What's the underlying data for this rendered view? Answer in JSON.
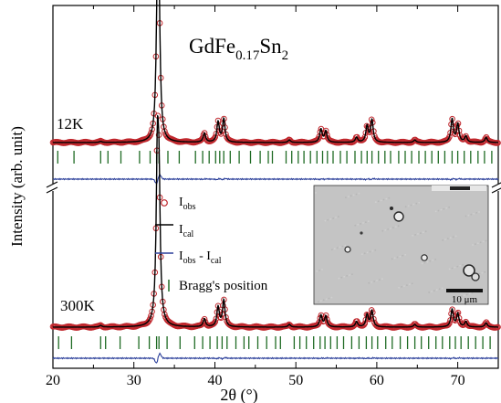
{
  "chart_data": {
    "type": "line",
    "formula": {
      "base": "GdFe",
      "sub1": "0.17",
      "mid": "Sn",
      "sub2": "2"
    },
    "xlabel": {
      "main": "2θ",
      "unit": "(°)"
    },
    "ylabel": "Intensity (arb. unit)",
    "xlim": [
      20,
      75
    ],
    "x_ticks": [
      20,
      30,
      40,
      50,
      60,
      70
    ],
    "colors": {
      "obs": "#c0272d",
      "cal": "#000000",
      "diff": "#2b3f9a",
      "bragg": "#1f6b24"
    },
    "legend": {
      "placement": "center",
      "obs": {
        "main": "I",
        "sub": "obs"
      },
      "cal": {
        "main": "I",
        "sub": "cal"
      },
      "diff": {
        "main1": "I",
        "sub1": "obs",
        "sep": " - ",
        "main2": "I",
        "sub2": "cal"
      },
      "bragg": "Bragg's position"
    },
    "panels": [
      {
        "label": "12K",
        "background": 0.1,
        "peaks": [
          [
            25.9,
            0.02
          ],
          [
            32.9,
            2.6
          ],
          [
            33.1,
            2.2
          ],
          [
            38.7,
            0.18
          ],
          [
            40.4,
            0.4
          ],
          [
            41.1,
            0.46
          ],
          [
            49.2,
            0.05
          ],
          [
            53.1,
            0.26
          ],
          [
            53.7,
            0.22
          ],
          [
            57.5,
            0.1
          ],
          [
            58.8,
            0.32
          ],
          [
            59.4,
            0.44
          ],
          [
            64.7,
            0.05
          ],
          [
            69.3,
            0.46
          ],
          [
            70.0,
            0.36
          ],
          [
            71.0,
            0.12
          ],
          [
            73.5,
            0.1
          ]
        ],
        "bragg": [
          20.6,
          22.6,
          25.9,
          26.8,
          28.4,
          30.7,
          32.0,
          32.8,
          33.1,
          34.2,
          35.6,
          37.6,
          38.5,
          39.3,
          40.1,
          40.6,
          41.1,
          41.9,
          43.0,
          44.4,
          45.6,
          46.6,
          47.1,
          48.8,
          49.5,
          50.3,
          51.0,
          51.8,
          52.6,
          53.3,
          53.9,
          54.6,
          55.5,
          56.3,
          57.3,
          58.1,
          58.8,
          59.4,
          60.2,
          61.0,
          61.7,
          62.7,
          63.5,
          64.3,
          65.2,
          66.0,
          66.8,
          67.6,
          68.4,
          69.3,
          70.0,
          70.8,
          71.6,
          72.5,
          73.3,
          74.2
        ]
      },
      {
        "label": "300K",
        "background": 0.1,
        "peaks": [
          [
            25.9,
            0.03
          ],
          [
            32.9,
            2.9
          ],
          [
            33.1,
            2.2
          ],
          [
            38.7,
            0.15
          ],
          [
            40.4,
            0.37
          ],
          [
            41.1,
            0.5
          ],
          [
            49.2,
            0.05
          ],
          [
            53.1,
            0.22
          ],
          [
            53.7,
            0.2
          ],
          [
            57.5,
            0.1
          ],
          [
            58.8,
            0.23
          ],
          [
            59.4,
            0.3
          ],
          [
            64.7,
            0.05
          ],
          [
            69.3,
            0.33
          ],
          [
            70.0,
            0.25
          ],
          [
            71.0,
            0.1
          ],
          [
            73.5,
            0.08
          ]
        ],
        "bragg": [
          20.7,
          22.3,
          25.9,
          26.5,
          28.3,
          30.6,
          31.9,
          32.8,
          33.1,
          34.1,
          35.7,
          37.5,
          38.5,
          39.4,
          40.3,
          40.9,
          41.5,
          42.6,
          43.6,
          44.2,
          45.3,
          46.4,
          47.5,
          48.1,
          49.8,
          50.5,
          51.3,
          52.2,
          53.0,
          53.6,
          54.3,
          55.1,
          55.9,
          56.9,
          57.8,
          58.7,
          59.4,
          60.1,
          61.1,
          61.9,
          62.9,
          63.8,
          64.7,
          65.5,
          66.4,
          67.3,
          68.1,
          69.0,
          69.7,
          70.4,
          71.3,
          72.2,
          73.1,
          74.0
        ]
      }
    ]
  },
  "inset": {
    "scale_bar": "10 μm",
    "colors": {
      "bg": "#c4c4c4",
      "bar": "#111111"
    }
  }
}
